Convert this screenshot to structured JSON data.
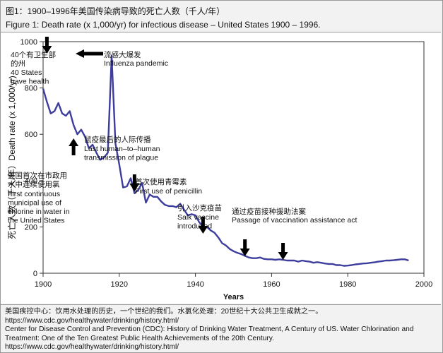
{
  "header": {
    "title_cn": "图1：1900–1996年美国传染病导致的死亡人数（千人/年）",
    "title_en": "Figure 1: Death rate (x 1,000/yr) for infectious disease – United States 1900 – 1996."
  },
  "chart_data": {
    "type": "line",
    "xlabel": "Years",
    "ylabel": "死亡人数（千人/年）Death rate (x 1,000/yr)",
    "xlim": [
      1900,
      2000
    ],
    "ylim": [
      0,
      1000
    ],
    "xticks": [
      1900,
      1920,
      1940,
      1960,
      1980,
      2000
    ],
    "yticks": [
      0,
      200,
      400,
      600,
      800,
      1000
    ],
    "grid": false,
    "line_color": "#3d3d9e",
    "series": [
      {
        "x": [
          1900,
          1901,
          1902,
          1903,
          1904,
          1905,
          1906,
          1907,
          1908,
          1909,
          1910,
          1911,
          1912,
          1913,
          1914,
          1915,
          1916,
          1917,
          1918,
          1919,
          1920,
          1921,
          1922,
          1923,
          1924,
          1925,
          1926,
          1927,
          1928,
          1929,
          1930,
          1931,
          1932,
          1933,
          1934,
          1935,
          1936,
          1937,
          1938,
          1939,
          1940,
          1941,
          1942,
          1943,
          1944,
          1945,
          1946,
          1947,
          1948,
          1949,
          1950,
          1951,
          1952,
          1953,
          1954,
          1955,
          1956,
          1957,
          1958,
          1959,
          1960,
          1961,
          1962,
          1963,
          1964,
          1965,
          1966,
          1967,
          1968,
          1969,
          1970,
          1971,
          1972,
          1973,
          1974,
          1975,
          1976,
          1977,
          1978,
          1979,
          1980,
          1981,
          1982,
          1983,
          1984,
          1985,
          1986,
          1987,
          1988,
          1989,
          1990,
          1991,
          1992,
          1993,
          1994,
          1995,
          1996
        ],
        "y": [
          797,
          740,
          690,
          700,
          735,
          690,
          680,
          700,
          640,
          600,
          620,
          590,
          540,
          555,
          520,
          490,
          500,
          520,
          940,
          560,
          470,
          370,
          375,
          410,
          345,
          360,
          390,
          305,
          340,
          330,
          330,
          310,
          295,
          290,
          290,
          285,
          300,
          275,
          250,
          255,
          250,
          220,
          200,
          200,
          185,
          175,
          155,
          130,
          120,
          105,
          95,
          88,
          83,
          75,
          68,
          65,
          65,
          68,
          62,
          60,
          60,
          58,
          60,
          58,
          55,
          55,
          55,
          50,
          55,
          52,
          50,
          45,
          48,
          45,
          42,
          40,
          40,
          35,
          35,
          32,
          33,
          35,
          38,
          40,
          42,
          43,
          45,
          47,
          50,
          52,
          55,
          55,
          56,
          58,
          60,
          60,
          55
        ]
      }
    ],
    "annotations": [
      {
        "id": "states",
        "cn": "40个有卫生部的州",
        "cn_lines": [
          "40个有卫生部",
          "的州"
        ],
        "en_lines": [
          "40 States",
          "have health"
        ],
        "x": 1901,
        "y": 830
      },
      {
        "id": "chlorine",
        "cn_lines": [
          "美国首次在市政用",
          "水中连续使用氯"
        ],
        "en_lines": [
          "First continuous",
          "municipal use of",
          "chlorine in water in",
          "the United States"
        ],
        "x": 1908,
        "y": 540
      },
      {
        "id": "influenza",
        "cn_lines": [
          "流感大爆发"
        ],
        "en_lines": [
          "Influenza pandemic"
        ],
        "x": 1918,
        "y": 960
      },
      {
        "id": "plague",
        "cn_lines": [
          "鼠疫最后的人际传播"
        ],
        "en_lines": [
          "Last human–to–human",
          "transmission of plague"
        ],
        "x": 1924,
        "y": 360
      },
      {
        "id": "penicillin",
        "cn_lines": [
          "首次使用青霉素"
        ],
        "en_lines": [
          "First use of penicillin"
        ],
        "x": 1942,
        "y": 200
      },
      {
        "id": "salk",
        "cn_lines": [
          "引入沙克疫苗"
        ],
        "en_lines": [
          "Salk vaccine",
          "introduced"
        ],
        "x": 1953,
        "y": 80
      },
      {
        "id": "vaccination",
        "cn_lines": [
          "通过疫苗接种援助法案"
        ],
        "en_lines": [
          "Passage of vaccination assistance act"
        ],
        "x": 1963,
        "y": 65
      }
    ]
  },
  "footer": {
    "line1": "美国疾控中心：饮用水处理的历史，一个世纪的我们。水氯化处理：20世纪十大公共卫生成就之一。",
    "line2": "https://www.cdc.gov/healthywater/drinking/history.html/",
    "line3": "Center for Disease Control and Prevention (CDC): History of Drinking Water Treatment, A Century of US. Water Chlorination and",
    "line4": "Treatment: One of the Ten Greatest Public Health Achievements of the 20th Century.",
    "line5": "https://www.cdc.gov/healthywater/drinking/history.html/"
  }
}
